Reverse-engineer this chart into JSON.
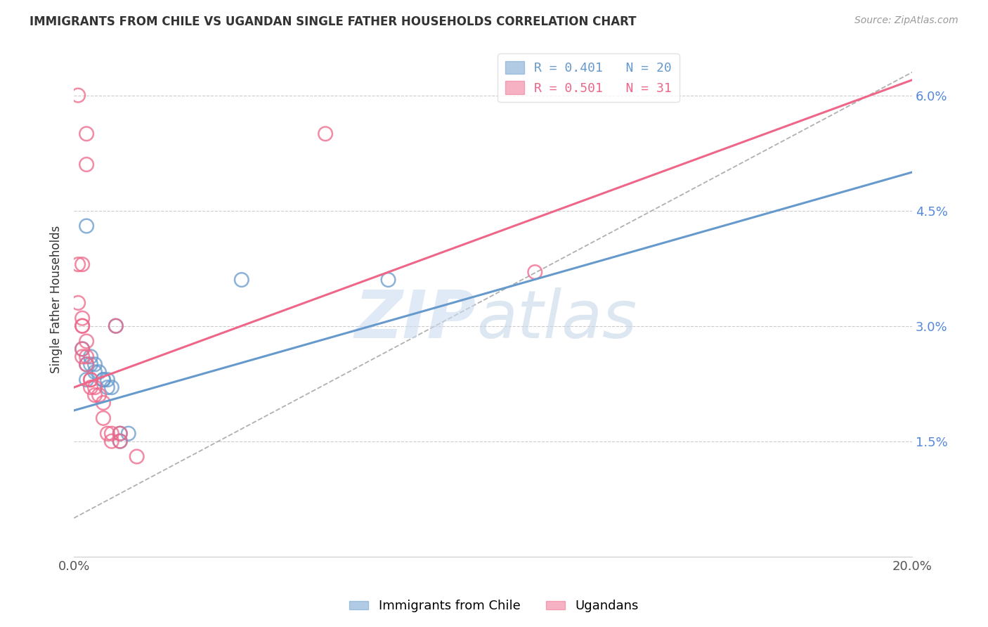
{
  "title": "IMMIGRANTS FROM CHILE VS UGANDAN SINGLE FATHER HOUSEHOLDS CORRELATION CHART",
  "source": "Source: ZipAtlas.com",
  "ylabel": "Single Father Households",
  "legend_labels": [
    "Immigrants from Chile",
    "Ugandans"
  ],
  "legend_r_n": [
    {
      "R": "0.401",
      "N": "20",
      "color": "#6699cc"
    },
    {
      "R": "0.501",
      "N": "31",
      "color": "#ee6688"
    }
  ],
  "x_min": 0.0,
  "x_max": 0.2,
  "y_min": 0.0,
  "y_max": 0.065,
  "x_ticks": [
    0.0,
    0.04,
    0.08,
    0.12,
    0.16,
    0.2
  ],
  "y_ticks": [
    0.0,
    0.015,
    0.03,
    0.045,
    0.06
  ],
  "y_tick_labels": [
    "",
    "1.5%",
    "3.0%",
    "4.5%",
    "6.0%"
  ],
  "blue_color": "#6699cc",
  "pink_color": "#ee6688",
  "blue_scatter": [
    [
      0.002,
      0.027
    ],
    [
      0.003,
      0.043
    ],
    [
      0.003,
      0.025
    ],
    [
      0.003,
      0.023
    ],
    [
      0.004,
      0.026
    ],
    [
      0.004,
      0.025
    ],
    [
      0.005,
      0.025
    ],
    [
      0.005,
      0.024
    ],
    [
      0.006,
      0.024
    ],
    [
      0.007,
      0.023
    ],
    [
      0.007,
      0.023
    ],
    [
      0.008,
      0.023
    ],
    [
      0.008,
      0.022
    ],
    [
      0.009,
      0.022
    ],
    [
      0.01,
      0.03
    ],
    [
      0.011,
      0.016
    ],
    [
      0.011,
      0.015
    ],
    [
      0.013,
      0.016
    ],
    [
      0.04,
      0.036
    ],
    [
      0.075,
      0.036
    ]
  ],
  "pink_scatter": [
    [
      0.001,
      0.06
    ],
    [
      0.003,
      0.055
    ],
    [
      0.003,
      0.051
    ],
    [
      0.001,
      0.038
    ],
    [
      0.002,
      0.038
    ],
    [
      0.001,
      0.033
    ],
    [
      0.002,
      0.031
    ],
    [
      0.002,
      0.03
    ],
    [
      0.002,
      0.03
    ],
    [
      0.003,
      0.028
    ],
    [
      0.002,
      0.027
    ],
    [
      0.002,
      0.026
    ],
    [
      0.003,
      0.026
    ],
    [
      0.003,
      0.025
    ],
    [
      0.004,
      0.023
    ],
    [
      0.004,
      0.023
    ],
    [
      0.004,
      0.022
    ],
    [
      0.005,
      0.022
    ],
    [
      0.005,
      0.021
    ],
    [
      0.006,
      0.021
    ],
    [
      0.007,
      0.02
    ],
    [
      0.007,
      0.018
    ],
    [
      0.008,
      0.016
    ],
    [
      0.009,
      0.016
    ],
    [
      0.009,
      0.015
    ],
    [
      0.01,
      0.03
    ],
    [
      0.011,
      0.016
    ],
    [
      0.011,
      0.015
    ],
    [
      0.015,
      0.013
    ],
    [
      0.06,
      0.055
    ],
    [
      0.11,
      0.037
    ]
  ],
  "blue_line": [
    [
      0.0,
      0.019
    ],
    [
      0.2,
      0.05
    ]
  ],
  "pink_line": [
    [
      0.0,
      0.022
    ],
    [
      0.2,
      0.062
    ]
  ],
  "dash_line": [
    [
      0.0,
      0.005
    ],
    [
      0.2,
      0.063
    ]
  ]
}
